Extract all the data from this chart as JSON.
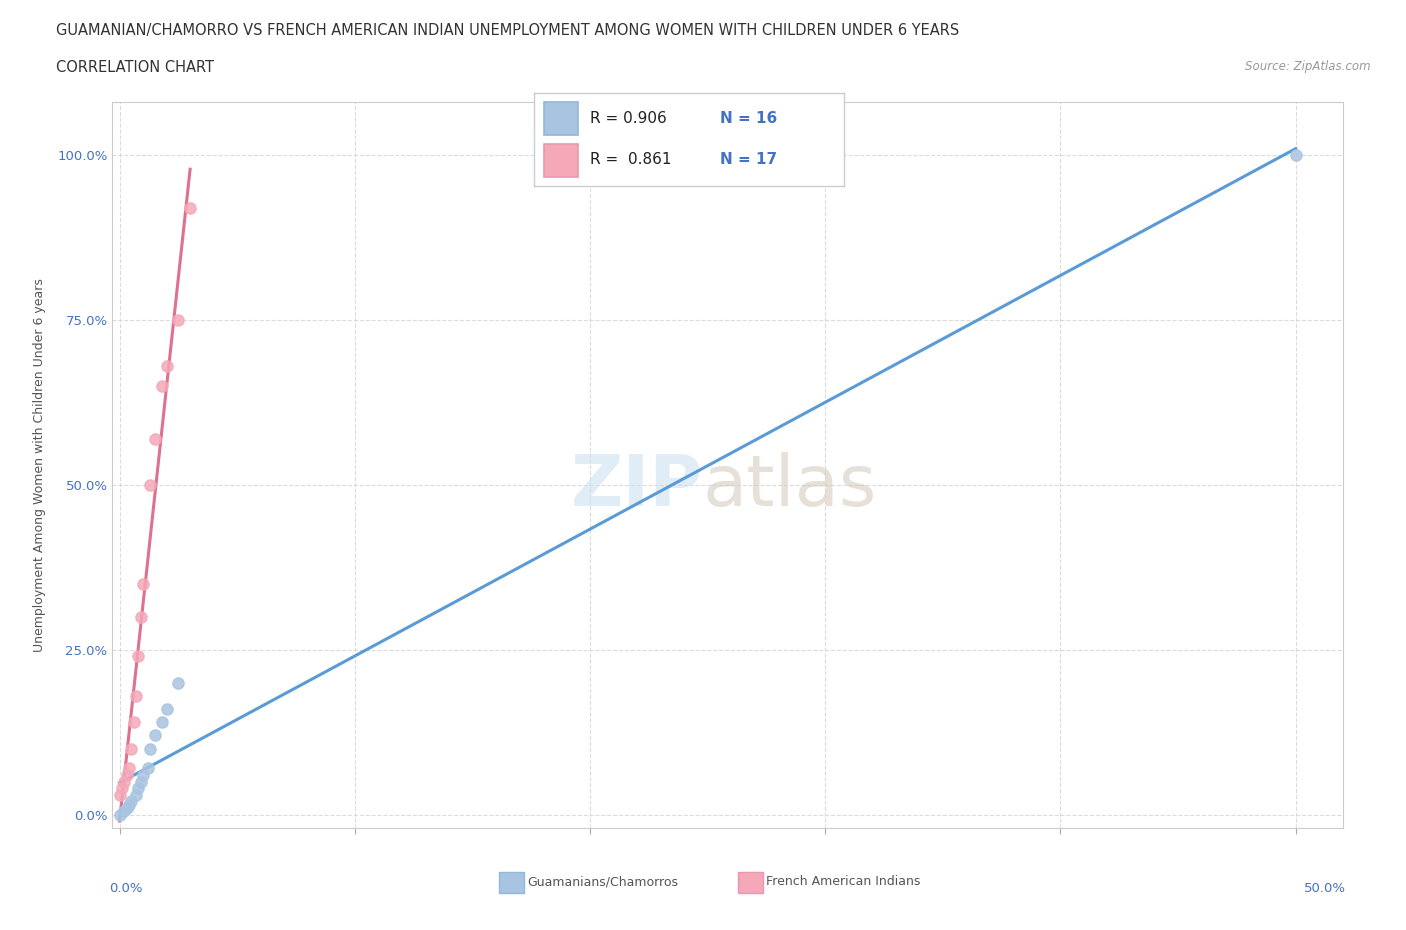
{
  "title_line1": "GUAMANIAN/CHAMORRO VS FRENCH AMERICAN INDIAN UNEMPLOYMENT AMONG WOMEN WITH CHILDREN UNDER 6 YEARS",
  "title_line2": "CORRELATION CHART",
  "source": "Source: ZipAtlas.com",
  "ylabel": "Unemployment Among Women with Children Under 6 years",
  "yticks": [
    "0.0%",
    "25.0%",
    "50.0%",
    "75.0%",
    "100.0%"
  ],
  "ytick_vals": [
    0.0,
    0.25,
    0.5,
    0.75,
    1.0
  ],
  "watermark_zip": "ZIP",
  "watermark_atlas": "atlas",
  "legend_r1": "R = 0.906",
  "legend_n1": "N = 16",
  "legend_r2": "R = 0.861",
  "legend_n2": "N = 17",
  "blue_color": "#a8c4e0",
  "pink_color": "#f4a8b8",
  "line_blue": "#5b9bd5",
  "line_pink": "#e07090",
  "text_blue": "#4472c4",
  "guamanian_x": [
    0.0,
    0.002,
    0.003,
    0.004,
    0.005,
    0.007,
    0.008,
    0.009,
    0.01,
    0.012,
    0.013,
    0.015,
    0.018,
    0.02,
    0.025,
    0.5
  ],
  "guamanian_y": [
    0.0,
    0.005,
    0.01,
    0.015,
    0.02,
    0.03,
    0.04,
    0.05,
    0.06,
    0.07,
    0.1,
    0.12,
    0.14,
    0.16,
    0.2,
    1.0
  ],
  "french_x": [
    0.0,
    0.001,
    0.002,
    0.003,
    0.004,
    0.005,
    0.006,
    0.007,
    0.008,
    0.009,
    0.01,
    0.013,
    0.015,
    0.018,
    0.02,
    0.025,
    0.03
  ],
  "french_y": [
    0.03,
    0.04,
    0.05,
    0.06,
    0.07,
    0.1,
    0.14,
    0.18,
    0.24,
    0.3,
    0.35,
    0.5,
    0.57,
    0.65,
    0.68,
    0.75,
    0.92
  ],
  "background_color": "#ffffff",
  "grid_color": "#d8d8d8",
  "xlim": [
    -0.003,
    0.52
  ],
  "ylim": [
    -0.02,
    1.08
  ],
  "xtick_positions": [
    0.0,
    0.1,
    0.2,
    0.3,
    0.4,
    0.5
  ]
}
